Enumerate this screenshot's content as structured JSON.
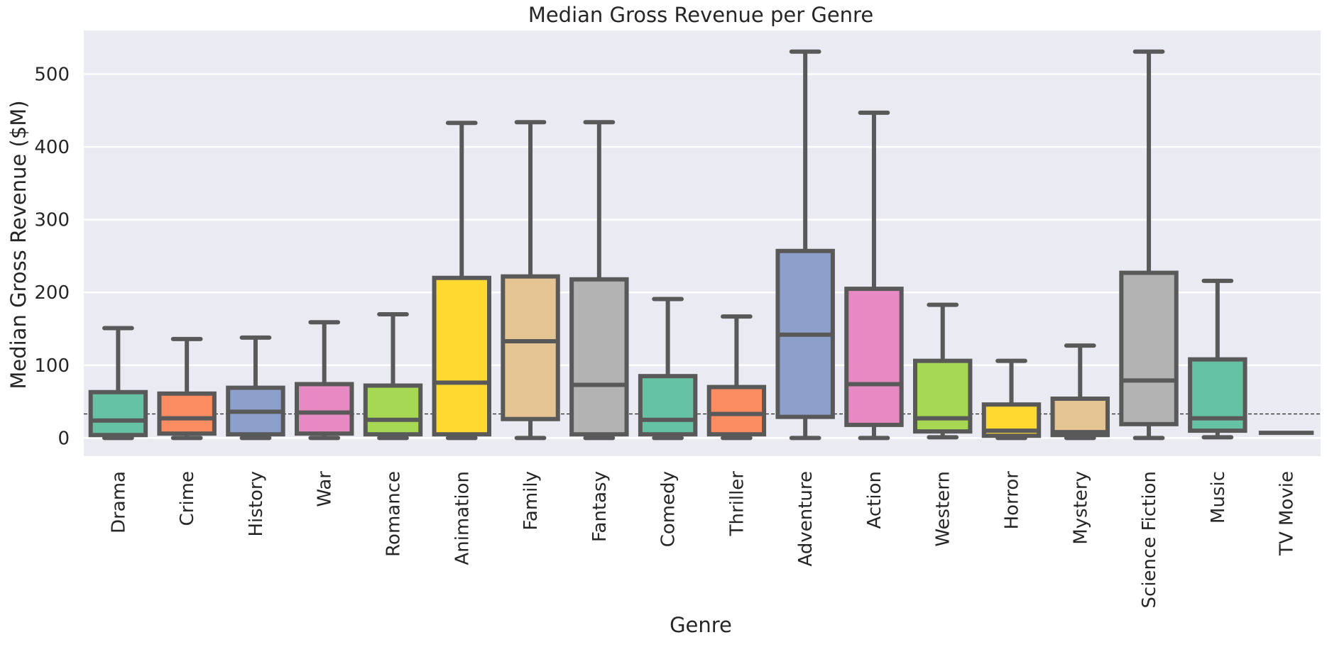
{
  "chart_data": {
    "type": "box",
    "title": "Median Gross Revenue per Genre",
    "xlabel": "Genre",
    "ylabel": "Median Gross Revenue ($M)",
    "ylim": [
      -25,
      560
    ],
    "yticks": [
      0,
      100,
      200,
      300,
      400,
      500
    ],
    "grid": true,
    "reference_line": {
      "value": 33,
      "style": "dashed"
    },
    "categories": [
      "Drama",
      "Crime",
      "History",
      "War",
      "Romance",
      "Animation",
      "Family",
      "Fantasy",
      "Comedy",
      "Thriller",
      "Adventure",
      "Action",
      "Western",
      "Horror",
      "Mystery",
      "Science Fiction",
      "Music",
      "TV Movie"
    ],
    "boxes": [
      {
        "category": "Drama",
        "whislo": 0,
        "q1": 4,
        "med": 24,
        "q3": 63,
        "whishi": 151,
        "color": "#66c2a5"
      },
      {
        "category": "Crime",
        "whislo": 0,
        "q1": 6,
        "med": 27,
        "q3": 61,
        "whishi": 136,
        "color": "#fc8d62"
      },
      {
        "category": "History",
        "whislo": 0,
        "q1": 5,
        "med": 36,
        "q3": 69,
        "whishi": 138,
        "color": "#8da0cb"
      },
      {
        "category": "War",
        "whislo": 0,
        "q1": 6,
        "med": 35,
        "q3": 74,
        "whishi": 159,
        "color": "#e78ac3"
      },
      {
        "category": "Romance",
        "whislo": 0,
        "q1": 5,
        "med": 25,
        "q3": 72,
        "whishi": 170,
        "color": "#a6d854"
      },
      {
        "category": "Animation",
        "whislo": 0,
        "q1": 5,
        "med": 76,
        "q3": 220,
        "whishi": 433,
        "color": "#ffd92f"
      },
      {
        "category": "Family",
        "whislo": 0,
        "q1": 26,
        "med": 133,
        "q3": 222,
        "whishi": 434,
        "color": "#e5c494"
      },
      {
        "category": "Fantasy",
        "whislo": 0,
        "q1": 5,
        "med": 73,
        "q3": 218,
        "whishi": 434,
        "color": "#b3b3b3"
      },
      {
        "category": "Comedy",
        "whislo": 0,
        "q1": 5,
        "med": 25,
        "q3": 85,
        "whishi": 191,
        "color": "#66c2a5"
      },
      {
        "category": "Thriller",
        "whislo": 0,
        "q1": 5,
        "med": 33,
        "q3": 70,
        "whishi": 167,
        "color": "#fc8d62"
      },
      {
        "category": "Adventure",
        "whislo": 0,
        "q1": 29,
        "med": 142,
        "q3": 257,
        "whishi": 531,
        "color": "#8da0cb"
      },
      {
        "category": "Action",
        "whislo": 0,
        "q1": 18,
        "med": 74,
        "q3": 205,
        "whishi": 447,
        "color": "#e78ac3"
      },
      {
        "category": "Western",
        "whislo": 1,
        "q1": 9,
        "med": 27,
        "q3": 106,
        "whishi": 183,
        "color": "#a6d854"
      },
      {
        "category": "Horror",
        "whislo": 0,
        "q1": 3,
        "med": 10,
        "q3": 46,
        "whishi": 106,
        "color": "#ffd92f"
      },
      {
        "category": "Mystery",
        "whislo": 0,
        "q1": 4,
        "med": 8,
        "q3": 54,
        "whishi": 127,
        "color": "#e5c494"
      },
      {
        "category": "Science Fiction",
        "whislo": 0,
        "q1": 19,
        "med": 79,
        "q3": 227,
        "whishi": 531,
        "color": "#b3b3b3"
      },
      {
        "category": "Music",
        "whislo": 1,
        "q1": 10,
        "med": 27,
        "q3": 108,
        "whishi": 216,
        "color": "#66c2a5"
      },
      {
        "category": "TV Movie",
        "whislo": 7,
        "q1": 7,
        "med": 7,
        "q3": 7,
        "whishi": 7,
        "color": "#fc8d62"
      }
    ],
    "colors": {
      "plot_background": "#eaeaf2",
      "grid": "#ffffff",
      "box_edge": "#595959",
      "reference_line": "#262626"
    }
  }
}
